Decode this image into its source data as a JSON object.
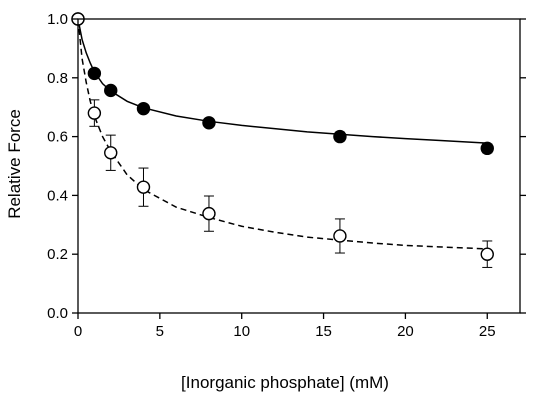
{
  "chart_data": {
    "type": "scatter",
    "title": "",
    "xlabel": "[Inorganic phosphate] (mM)",
    "ylabel": "Relative Force",
    "xlim": [
      0,
      27
    ],
    "ylim": [
      0,
      1.0
    ],
    "xticks": [
      "0",
      "5",
      "10",
      "15",
      "20",
      "25"
    ],
    "xtick_values": [
      0,
      5,
      10,
      15,
      20,
      25
    ],
    "yticks": [
      "0.0",
      "0.2",
      "0.4",
      "0.6",
      "0.8",
      "1.0"
    ],
    "ytick_values": [
      0.0,
      0.2,
      0.4,
      0.6,
      0.8,
      1.0
    ],
    "grid": false,
    "legend": "none",
    "series": [
      {
        "marker": "filled-circle",
        "line_style": "solid",
        "x": [
          0,
          1,
          2,
          4,
          8,
          16,
          25
        ],
        "y": [
          1.0,
          0.815,
          0.757,
          0.695,
          0.647,
          0.6,
          0.56
        ],
        "err": [
          0,
          0.012,
          0.012,
          0.012,
          0.012,
          0.015,
          0.015
        ],
        "fit_x": [
          0,
          0.25,
          0.5,
          0.75,
          1,
          1.5,
          2,
          3,
          4,
          6,
          8,
          10,
          12,
          14,
          16,
          18,
          20,
          22,
          25
        ],
        "fit_y": [
          1.0,
          0.93,
          0.885,
          0.85,
          0.82,
          0.78,
          0.755,
          0.72,
          0.698,
          0.67,
          0.652,
          0.638,
          0.627,
          0.616,
          0.608,
          0.6,
          0.593,
          0.587,
          0.578
        ]
      },
      {
        "marker": "open-circle",
        "line_style": "dashed",
        "x": [
          0,
          1,
          2,
          4,
          8,
          16,
          25
        ],
        "y": [
          1.0,
          0.68,
          0.545,
          0.428,
          0.338,
          0.262,
          0.2
        ],
        "err": [
          0,
          0.045,
          0.06,
          0.065,
          0.06,
          0.058,
          0.045
        ],
        "fit_x": [
          0,
          0.25,
          0.5,
          0.75,
          1,
          1.5,
          2,
          3,
          4,
          6,
          8,
          10,
          12,
          14,
          16,
          18,
          20,
          22,
          25
        ],
        "fit_y": [
          1.0,
          0.865,
          0.785,
          0.72,
          0.67,
          0.6,
          0.55,
          0.47,
          0.42,
          0.36,
          0.325,
          0.295,
          0.275,
          0.258,
          0.248,
          0.238,
          0.23,
          0.225,
          0.218
        ]
      }
    ]
  }
}
